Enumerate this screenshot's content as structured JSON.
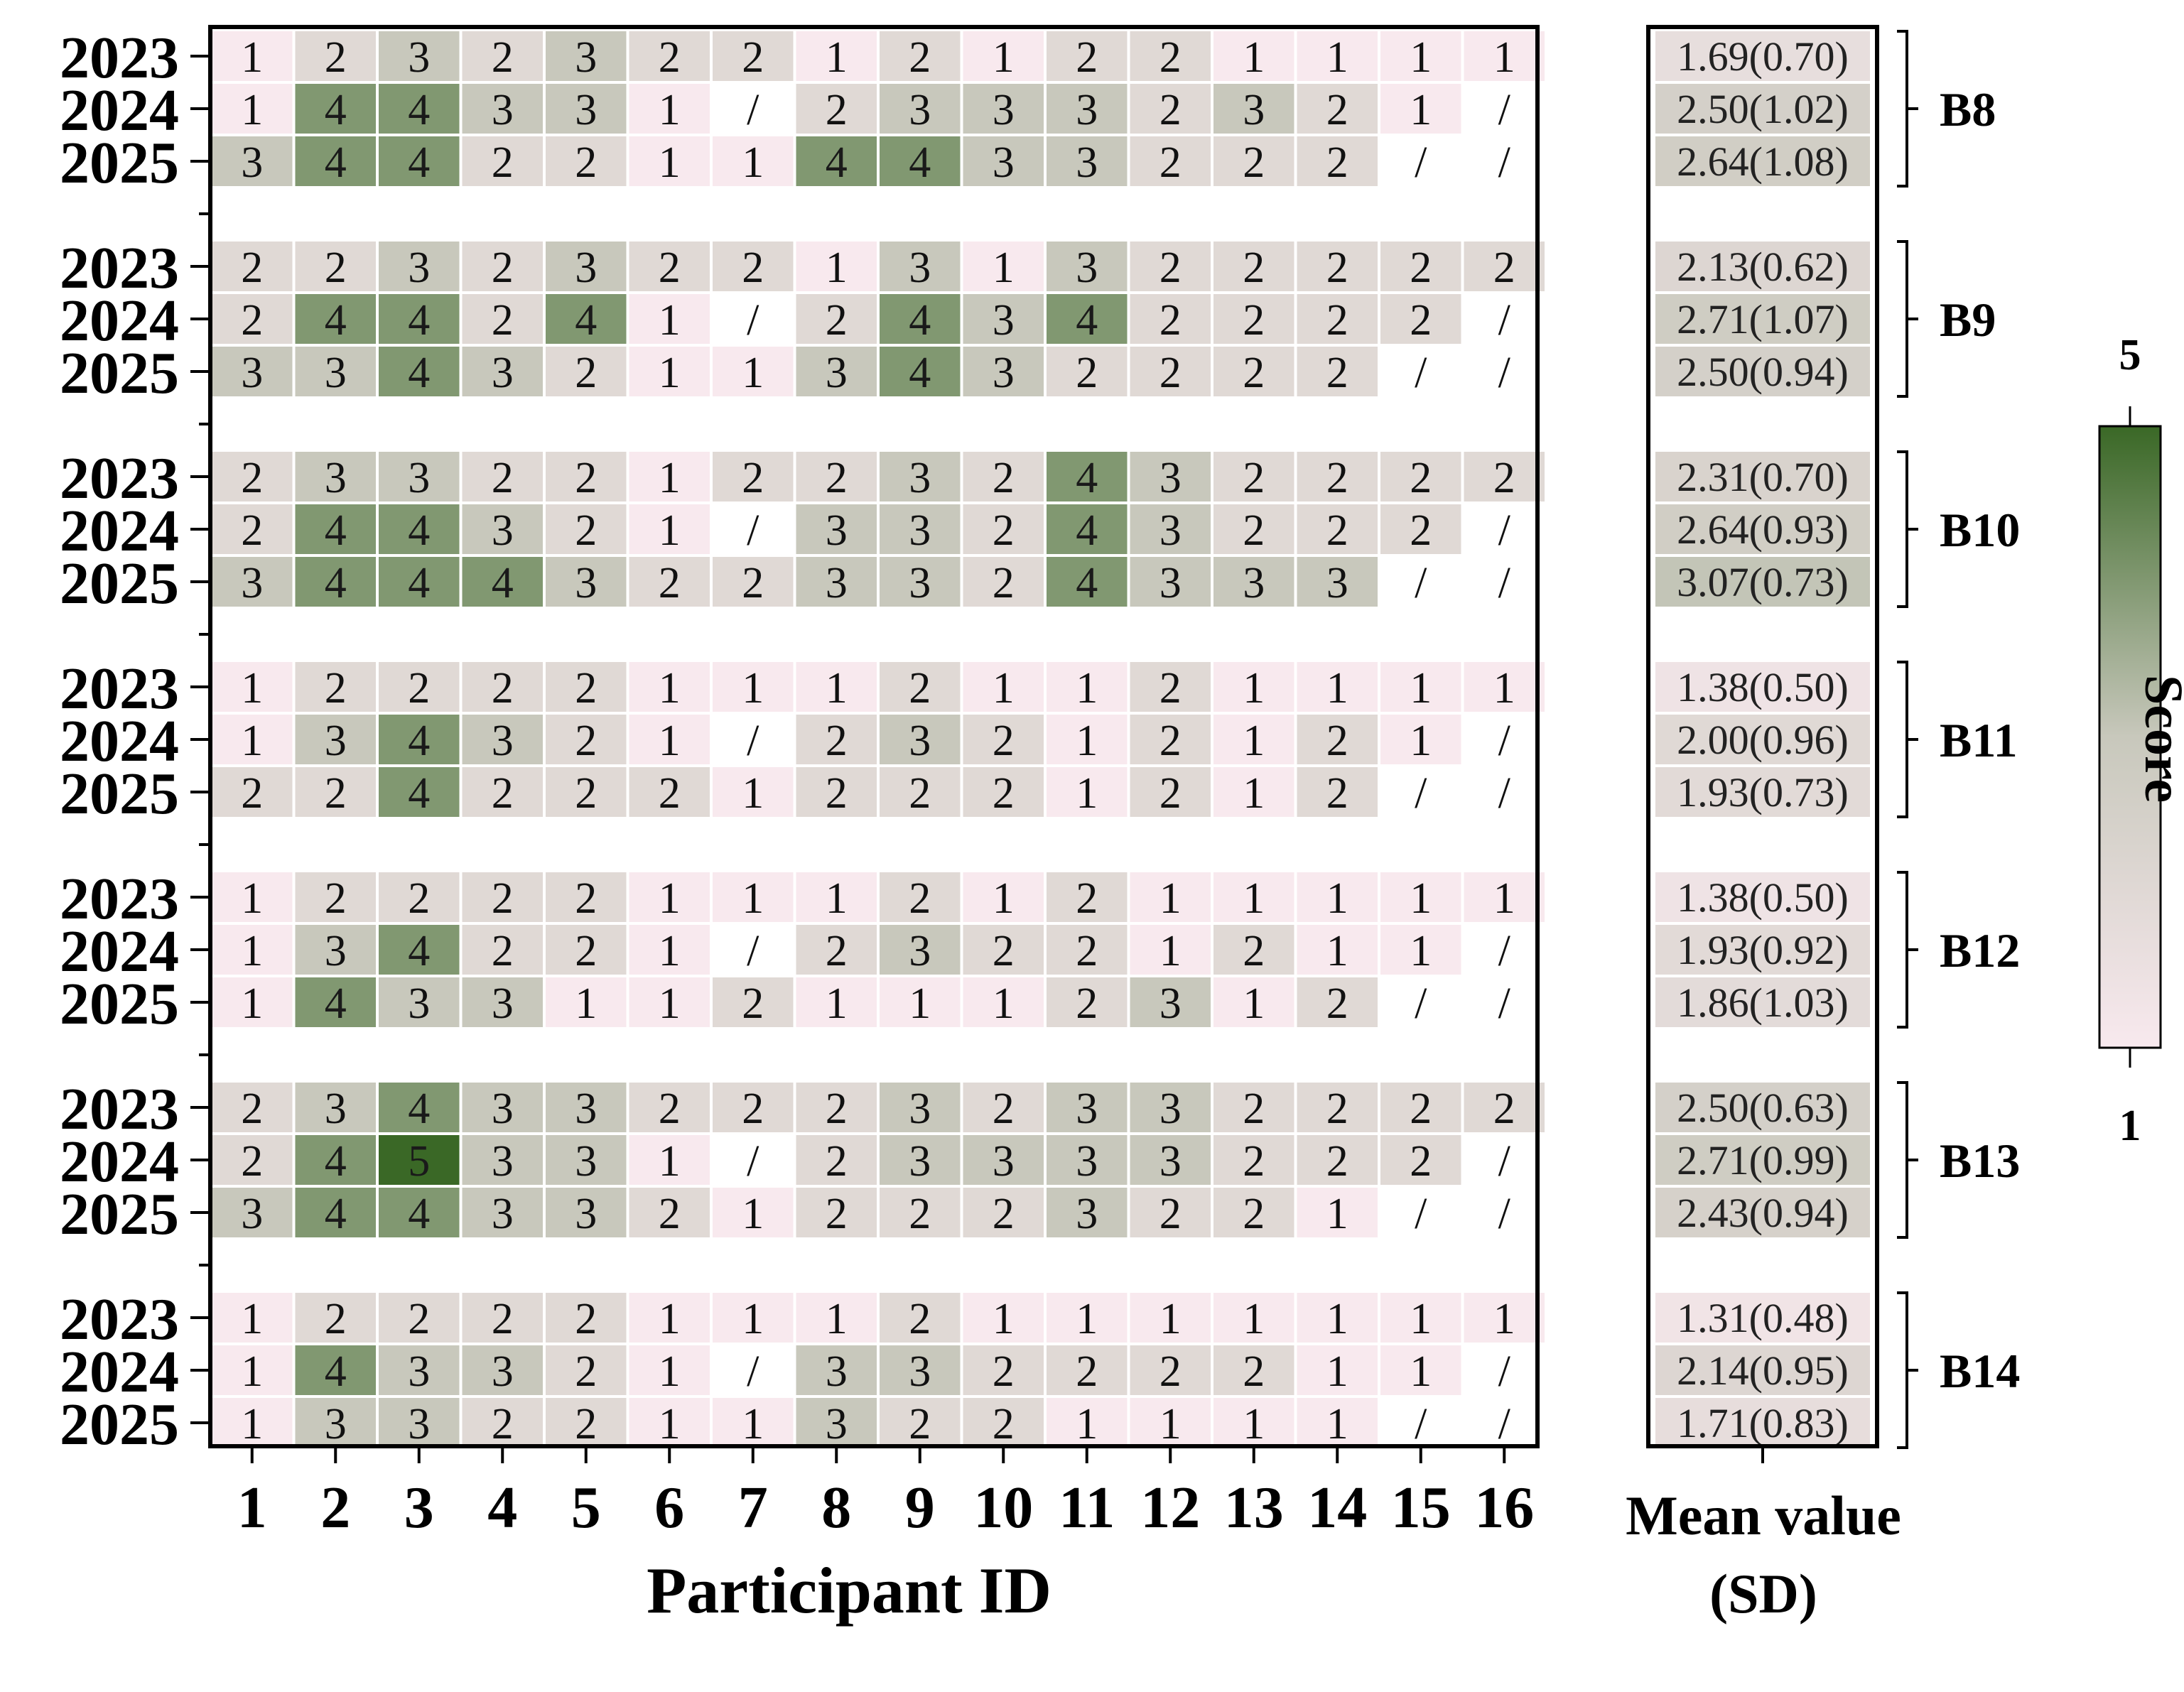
{
  "chart_data": {
    "type": "heatmap",
    "xlabel": "Participant ID",
    "participants": [
      "1",
      "2",
      "3",
      "4",
      "5",
      "6",
      "7",
      "8",
      "9",
      "10",
      "11",
      "12",
      "13",
      "14",
      "15",
      "16"
    ],
    "mean_header": [
      "Mean value",
      "(SD)"
    ],
    "colorbar": {
      "title": "Score",
      "min": 1,
      "max": 5,
      "min_label": "1",
      "max_label": "5"
    },
    "colors": {
      "low": "#f8e9ee",
      "mid": "#c8c8bc",
      "high": "#3a6826"
    },
    "missing_marker": "/",
    "groups": [
      {
        "name": "B8",
        "rows": [
          {
            "year": "2023",
            "values": [
              "1",
              "2",
              "3",
              "2",
              "3",
              "2",
              "2",
              "1",
              "2",
              "1",
              "2",
              "2",
              "1",
              "1",
              "1",
              "1"
            ],
            "mean": 1.69,
            "mean_text": "1.69(0.70)"
          },
          {
            "year": "2024",
            "values": [
              "1",
              "4",
              "4",
              "3",
              "3",
              "1",
              "/",
              "2",
              "3",
              "3",
              "3",
              "2",
              "3",
              "2",
              "1",
              "/"
            ],
            "mean": 2.5,
            "mean_text": "2.50(1.02)"
          },
          {
            "year": "2025",
            "values": [
              "3",
              "4",
              "4",
              "2",
              "2",
              "1",
              "1",
              "4",
              "4",
              "3",
              "3",
              "2",
              "2",
              "2",
              "/",
              "/"
            ],
            "mean": 2.64,
            "mean_text": "2.64(1.08)"
          }
        ]
      },
      {
        "name": "B9",
        "rows": [
          {
            "year": "2023",
            "values": [
              "2",
              "2",
              "3",
              "2",
              "3",
              "2",
              "2",
              "1",
              "3",
              "1",
              "3",
              "2",
              "2",
              "2",
              "2",
              "2"
            ],
            "mean": 2.13,
            "mean_text": "2.13(0.62)"
          },
          {
            "year": "2024",
            "values": [
              "2",
              "4",
              "4",
              "2",
              "4",
              "1",
              "/",
              "2",
              "4",
              "3",
              "4",
              "2",
              "2",
              "2",
              "2",
              "/"
            ],
            "mean": 2.71,
            "mean_text": "2.71(1.07)"
          },
          {
            "year": "2025",
            "values": [
              "3",
              "3",
              "4",
              "3",
              "2",
              "1",
              "1",
              "3",
              "4",
              "3",
              "2",
              "2",
              "2",
              "2",
              "/",
              "/"
            ],
            "mean": 2.5,
            "mean_text": "2.50(0.94)"
          }
        ]
      },
      {
        "name": "B10",
        "rows": [
          {
            "year": "2023",
            "values": [
              "2",
              "3",
              "3",
              "2",
              "2",
              "1",
              "2",
              "2",
              "3",
              "2",
              "4",
              "3",
              "2",
              "2",
              "2",
              "2"
            ],
            "mean": 2.31,
            "mean_text": "2.31(0.70)"
          },
          {
            "year": "2024",
            "values": [
              "2",
              "4",
              "4",
              "3",
              "2",
              "1",
              "/",
              "3",
              "3",
              "2",
              "4",
              "3",
              "2",
              "2",
              "2",
              "/"
            ],
            "mean": 2.64,
            "mean_text": "2.64(0.93)"
          },
          {
            "year": "2025",
            "values": [
              "3",
              "4",
              "4",
              "4",
              "3",
              "2",
              "2",
              "3",
              "3",
              "2",
              "4",
              "3",
              "3",
              "3",
              "/",
              "/"
            ],
            "mean": 3.07,
            "mean_text": "3.07(0.73)"
          }
        ]
      },
      {
        "name": "B11",
        "rows": [
          {
            "year": "2023",
            "values": [
              "1",
              "2",
              "2",
              "2",
              "2",
              "1",
              "1",
              "1",
              "2",
              "1",
              "1",
              "2",
              "1",
              "1",
              "1",
              "1"
            ],
            "mean": 1.38,
            "mean_text": "1.38(0.50)"
          },
          {
            "year": "2024",
            "values": [
              "1",
              "3",
              "4",
              "3",
              "2",
              "1",
              "/",
              "2",
              "3",
              "2",
              "1",
              "2",
              "1",
              "2",
              "1",
              "/"
            ],
            "mean": 2.0,
            "mean_text": "2.00(0.96)"
          },
          {
            "year": "2025",
            "values": [
              "2",
              "2",
              "4",
              "2",
              "2",
              "2",
              "1",
              "2",
              "2",
              "2",
              "1",
              "2",
              "1",
              "2",
              "/",
              "/"
            ],
            "mean": 1.93,
            "mean_text": "1.93(0.73)"
          }
        ]
      },
      {
        "name": "B12",
        "rows": [
          {
            "year": "2023",
            "values": [
              "1",
              "2",
              "2",
              "2",
              "2",
              "1",
              "1",
              "1",
              "2",
              "1",
              "2",
              "1",
              "1",
              "1",
              "1",
              "1"
            ],
            "mean": 1.38,
            "mean_text": "1.38(0.50)"
          },
          {
            "year": "2024",
            "values": [
              "1",
              "3",
              "4",
              "2",
              "2",
              "1",
              "/",
              "2",
              "3",
              "2",
              "2",
              "1",
              "2",
              "1",
              "1",
              "/"
            ],
            "mean": 1.93,
            "mean_text": "1.93(0.92)"
          },
          {
            "year": "2025",
            "values": [
              "1",
              "4",
              "3",
              "3",
              "1",
              "1",
              "2",
              "1",
              "1",
              "1",
              "2",
              "3",
              "1",
              "2",
              "/",
              "/"
            ],
            "mean": 1.86,
            "mean_text": "1.86(1.03)"
          }
        ]
      },
      {
        "name": "B13",
        "rows": [
          {
            "year": "2023",
            "values": [
              "2",
              "3",
              "4",
              "3",
              "3",
              "2",
              "2",
              "2",
              "3",
              "2",
              "3",
              "3",
              "2",
              "2",
              "2",
              "2"
            ],
            "mean": 2.5,
            "mean_text": "2.50(0.63)"
          },
          {
            "year": "2024",
            "values": [
              "2",
              "4",
              "5",
              "3",
              "3",
              "1",
              "/",
              "2",
              "3",
              "3",
              "3",
              "3",
              "2",
              "2",
              "2",
              "/"
            ],
            "mean": 2.71,
            "mean_text": "2.71(0.99)"
          },
          {
            "year": "2025",
            "values": [
              "3",
              "4",
              "4",
              "3",
              "3",
              "2",
              "1",
              "2",
              "2",
              "2",
              "3",
              "2",
              "2",
              "1",
              "/",
              "/"
            ],
            "mean": 2.43,
            "mean_text": "2.43(0.94)"
          }
        ]
      },
      {
        "name": "B14",
        "rows": [
          {
            "year": "2023",
            "values": [
              "1",
              "2",
              "2",
              "2",
              "2",
              "1",
              "1",
              "1",
              "2",
              "1",
              "1",
              "1",
              "1",
              "1",
              "1",
              "1"
            ],
            "mean": 1.31,
            "mean_text": "1.31(0.48)"
          },
          {
            "year": "2024",
            "values": [
              "1",
              "4",
              "3",
              "3",
              "2",
              "1",
              "/",
              "3",
              "3",
              "2",
              "2",
              "2",
              "2",
              "1",
              "1",
              "/"
            ],
            "mean": 2.14,
            "mean_text": "2.14(0.95)"
          },
          {
            "year": "2025",
            "values": [
              "1",
              "3",
              "3",
              "2",
              "2",
              "1",
              "1",
              "3",
              "2",
              "2",
              "1",
              "1",
              "1",
              "1",
              "/",
              "/"
            ],
            "mean": 1.71,
            "mean_text": "1.71(0.83)"
          }
        ]
      }
    ]
  }
}
